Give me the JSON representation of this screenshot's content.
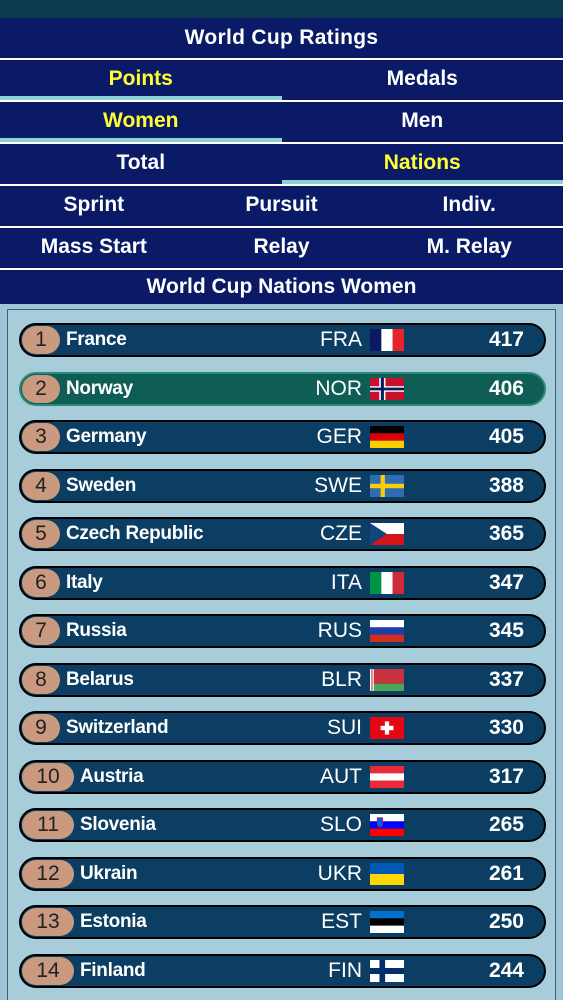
{
  "header": {
    "title": "World Cup Ratings",
    "tabs1": [
      {
        "label": "Points",
        "active": true
      },
      {
        "label": "Medals",
        "active": false
      }
    ],
    "tabs2": [
      {
        "label": "Women",
        "active": true
      },
      {
        "label": "Men",
        "active": false
      }
    ],
    "tabs3": [
      {
        "label": "Total",
        "active": false
      },
      {
        "label": "Nations",
        "active": true
      }
    ],
    "disciplines1": [
      "Sprint",
      "Pursuit",
      "Indiv."
    ],
    "disciplines2": [
      "Mass Start",
      "Relay",
      "M. Relay"
    ],
    "subtitle": "World Cup Nations Women"
  },
  "ranking": [
    {
      "rank": "1",
      "name": "France",
      "code": "FRA",
      "points": "417",
      "flag": "fra-flag-icon"
    },
    {
      "rank": "2",
      "name": "Norway",
      "code": "NOR",
      "points": "406",
      "flag": "nor-flag-icon",
      "highlight": true
    },
    {
      "rank": "3",
      "name": "Germany",
      "code": "GER",
      "points": "405",
      "flag": "ger-flag-icon"
    },
    {
      "rank": "4",
      "name": "Sweden",
      "code": "SWE",
      "points": "388",
      "flag": "swe-flag-icon"
    },
    {
      "rank": "5",
      "name": "Czech Republic",
      "code": "CZE",
      "points": "365",
      "flag": "cze-flag-icon"
    },
    {
      "rank": "6",
      "name": "Italy",
      "code": "ITA",
      "points": "347",
      "flag": "ita-flag-icon"
    },
    {
      "rank": "7",
      "name": "Russia",
      "code": "RUS",
      "points": "345",
      "flag": "rus-flag-icon"
    },
    {
      "rank": "8",
      "name": "Belarus",
      "code": "BLR",
      "points": "337",
      "flag": "blr-flag-icon"
    },
    {
      "rank": "9",
      "name": "Switzerland",
      "code": "SUI",
      "points": "330",
      "flag": "sui-flag-icon"
    },
    {
      "rank": "10",
      "name": "Austria",
      "code": "AUT",
      "points": "317",
      "flag": "aut-flag-icon"
    },
    {
      "rank": "11",
      "name": "Slovenia",
      "code": "SLO",
      "points": "265",
      "flag": "slo-flag-icon"
    },
    {
      "rank": "12",
      "name": "Ukrain",
      "code": "UKR",
      "points": "261",
      "flag": "ukr-flag-icon"
    },
    {
      "rank": "13",
      "name": "Estonia",
      "code": "EST",
      "points": "250",
      "flag": "est-flag-icon"
    },
    {
      "rank": "14",
      "name": "Finland",
      "code": "FIN",
      "points": "244",
      "flag": "fin-flag-icon"
    }
  ]
}
